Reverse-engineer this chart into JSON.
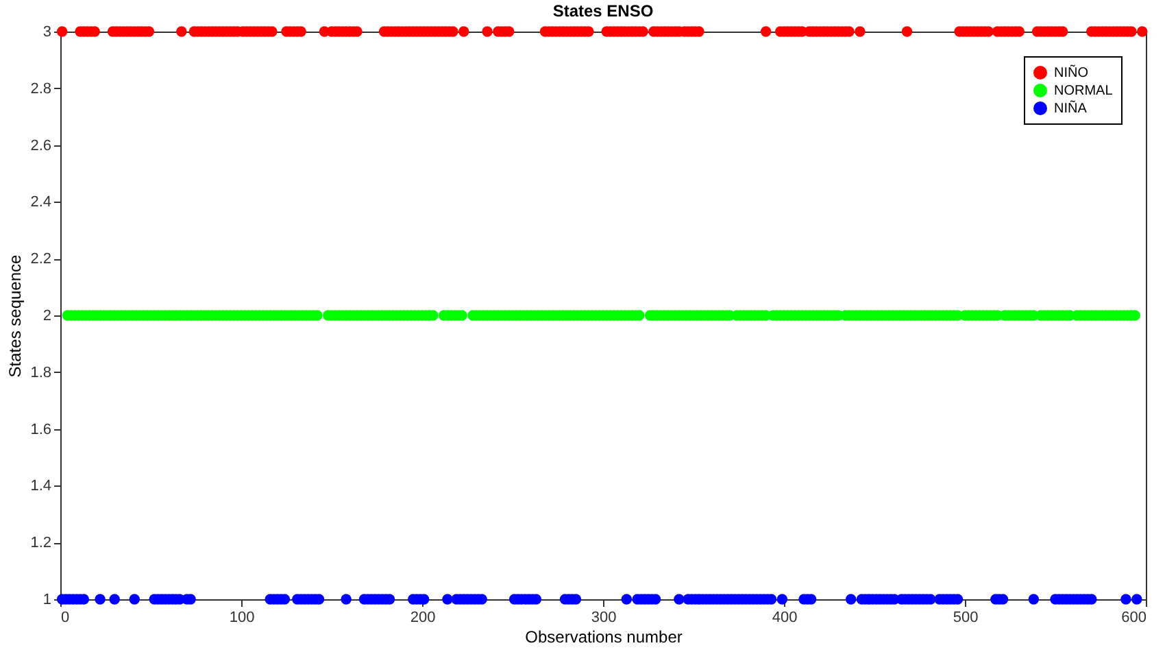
{
  "chart_data": {
    "type": "scatter",
    "title": "States ENSO",
    "xlabel": "Observations number",
    "ylabel": "States sequence",
    "xlim": [
      0,
      600
    ],
    "xticks": [
      0,
      100,
      200,
      300,
      400,
      500,
      600
    ],
    "ylim": [
      1,
      3
    ],
    "yticks": [
      1,
      1.2,
      1.4,
      1.6,
      1.8,
      2,
      2.2,
      2.4,
      2.6,
      2.8,
      3
    ],
    "grid": false,
    "legend": "top right",
    "marker": "circle",
    "series": [
      {
        "name": "NIÑO",
        "color": "#ff0000",
        "x": [
          1,
          11,
          13,
          15,
          17,
          19,
          29,
          31,
          33,
          35,
          37,
          39,
          41,
          43,
          45,
          47,
          49,
          67,
          74,
          76,
          78,
          80,
          82,
          84,
          86,
          88,
          90,
          92,
          94,
          96,
          98,
          101,
          103,
          105,
          107,
          109,
          111,
          113,
          115,
          117,
          125,
          127,
          129,
          131,
          133,
          146,
          150,
          152,
          154,
          156,
          158,
          160,
          162,
          164,
          179,
          181,
          183,
          185,
          187,
          189,
          191,
          193,
          195,
          197,
          199,
          201,
          203,
          205,
          207,
          209,
          211,
          213,
          215,
          217,
          223,
          236,
          242,
          244,
          246,
          248,
          268,
          270,
          272,
          274,
          276,
          278,
          280,
          282,
          284,
          286,
          288,
          290,
          292,
          302,
          304,
          306,
          308,
          310,
          312,
          314,
          316,
          318,
          320,
          322,
          328,
          330,
          332,
          334,
          336,
          338,
          340,
          342,
          345,
          347,
          349,
          351,
          353,
          390,
          398,
          400,
          402,
          404,
          406,
          408,
          410,
          414,
          416,
          418,
          420,
          422,
          424,
          426,
          428,
          430,
          432,
          434,
          436,
          442,
          468,
          497,
          499,
          501,
          503,
          505,
          507,
          509,
          511,
          513,
          518,
          520,
          522,
          524,
          526,
          528,
          530,
          540,
          542,
          544,
          546,
          548,
          550,
          552,
          554,
          570,
          572,
          574,
          576,
          578,
          580,
          582,
          584,
          586,
          588,
          590,
          592,
          598
        ],
        "values": [
          3,
          3,
          3,
          3,
          3,
          3,
          3,
          3,
          3,
          3,
          3,
          3,
          3,
          3,
          3,
          3,
          3,
          3,
          3,
          3,
          3,
          3,
          3,
          3,
          3,
          3,
          3,
          3,
          3,
          3,
          3,
          3,
          3,
          3,
          3,
          3,
          3,
          3,
          3,
          3,
          3,
          3,
          3,
          3,
          3,
          3,
          3,
          3,
          3,
          3,
          3,
          3,
          3,
          3,
          3,
          3,
          3,
          3,
          3,
          3,
          3,
          3,
          3,
          3,
          3,
          3,
          3,
          3,
          3,
          3,
          3,
          3,
          3,
          3,
          3,
          3,
          3,
          3,
          3,
          3,
          3,
          3,
          3,
          3,
          3,
          3,
          3,
          3,
          3,
          3,
          3,
          3,
          3,
          3,
          3,
          3,
          3,
          3,
          3,
          3,
          3,
          3,
          3,
          3,
          3,
          3,
          3,
          3,
          3,
          3,
          3,
          3,
          3,
          3,
          3,
          3,
          3,
          3,
          3,
          3,
          3,
          3,
          3,
          3,
          3,
          3,
          3,
          3,
          3,
          3,
          3,
          3,
          3,
          3,
          3,
          3,
          3,
          3,
          3,
          3,
          3,
          3,
          3,
          3,
          3,
          3,
          3,
          3,
          3,
          3,
          3,
          3,
          3,
          3,
          3,
          3,
          3,
          3,
          3,
          3,
          3,
          3,
          3,
          3,
          3,
          3,
          3,
          3,
          3,
          3,
          3,
          3,
          3,
          3,
          3,
          3
        ]
      },
      {
        "name": "NORMAL",
        "color": "#00ff00",
        "x": [
          4,
          6,
          8,
          10,
          12,
          14,
          16,
          18,
          20,
          22,
          24,
          26,
          28,
          30,
          32,
          34,
          36,
          38,
          40,
          42,
          44,
          46,
          48,
          50,
          52,
          54,
          56,
          58,
          60,
          62,
          64,
          66,
          68,
          70,
          72,
          74,
          76,
          78,
          80,
          82,
          84,
          86,
          88,
          90,
          92,
          94,
          96,
          98,
          100,
          102,
          104,
          106,
          108,
          110,
          112,
          114,
          116,
          118,
          120,
          122,
          124,
          126,
          128,
          130,
          132,
          134,
          136,
          138,
          140,
          142,
          148,
          150,
          152,
          154,
          156,
          158,
          160,
          162,
          164,
          166,
          168,
          170,
          172,
          174,
          176,
          178,
          180,
          182,
          184,
          186,
          188,
          190,
          192,
          194,
          196,
          198,
          200,
          202,
          204,
          206,
          212,
          214,
          216,
          218,
          220,
          222,
          228,
          230,
          232,
          234,
          236,
          238,
          240,
          242,
          244,
          246,
          248,
          250,
          252,
          254,
          256,
          258,
          260,
          262,
          264,
          266,
          268,
          270,
          272,
          274,
          276,
          278,
          280,
          282,
          284,
          286,
          288,
          290,
          292,
          294,
          296,
          298,
          300,
          302,
          304,
          306,
          308,
          310,
          312,
          314,
          316,
          318,
          320,
          326,
          328,
          330,
          332,
          334,
          336,
          338,
          340,
          342,
          344,
          346,
          348,
          350,
          352,
          354,
          356,
          358,
          360,
          362,
          364,
          366,
          368,
          370,
          374,
          376,
          378,
          380,
          382,
          384,
          386,
          388,
          390,
          394,
          396,
          398,
          400,
          402,
          404,
          406,
          408,
          410,
          412,
          414,
          416,
          418,
          420,
          422,
          424,
          426,
          428,
          430,
          434,
          436,
          438,
          440,
          442,
          444,
          446,
          448,
          450,
          452,
          454,
          456,
          458,
          460,
          462,
          464,
          466,
          468,
          470,
          472,
          474,
          476,
          478,
          480,
          482,
          484,
          486,
          488,
          490,
          492,
          494,
          496,
          500,
          502,
          504,
          506,
          508,
          510,
          512,
          514,
          516,
          518,
          522,
          524,
          526,
          528,
          530,
          532,
          534,
          536,
          538,
          542,
          544,
          546,
          548,
          550,
          552,
          554,
          556,
          558,
          562,
          564,
          566,
          568,
          570,
          572,
          574,
          576,
          578,
          580,
          582,
          584,
          586,
          588,
          590,
          592,
          594
        ],
        "values": [
          2,
          2,
          2,
          2,
          2,
          2,
          2,
          2,
          2,
          2,
          2,
          2,
          2,
          2,
          2,
          2,
          2,
          2,
          2,
          2,
          2,
          2,
          2,
          2,
          2,
          2,
          2,
          2,
          2,
          2,
          2,
          2,
          2,
          2,
          2,
          2,
          2,
          2,
          2,
          2,
          2,
          2,
          2,
          2,
          2,
          2,
          2,
          2,
          2,
          2,
          2,
          2,
          2,
          2,
          2,
          2,
          2,
          2,
          2,
          2,
          2,
          2,
          2,
          2,
          2,
          2,
          2,
          2,
          2,
          2,
          2,
          2,
          2,
          2,
          2,
          2,
          2,
          2,
          2,
          2,
          2,
          2,
          2,
          2,
          2,
          2,
          2,
          2,
          2,
          2,
          2,
          2,
          2,
          2,
          2,
          2,
          2,
          2,
          2,
          2,
          2,
          2,
          2,
          2,
          2,
          2,
          2,
          2,
          2,
          2,
          2,
          2,
          2,
          2,
          2,
          2,
          2,
          2,
          2,
          2,
          2,
          2,
          2,
          2,
          2,
          2,
          2,
          2,
          2,
          2,
          2,
          2,
          2,
          2,
          2,
          2,
          2,
          2,
          2,
          2,
          2,
          2,
          2,
          2,
          2,
          2,
          2,
          2,
          2,
          2,
          2,
          2,
          2,
          2,
          2,
          2,
          2,
          2,
          2,
          2,
          2,
          2,
          2,
          2,
          2,
          2,
          2,
          2,
          2,
          2,
          2,
          2,
          2,
          2,
          2,
          2,
          2,
          2,
          2,
          2,
          2,
          2,
          2,
          2,
          2,
          2,
          2,
          2,
          2,
          2,
          2,
          2,
          2,
          2,
          2,
          2,
          2,
          2,
          2,
          2,
          2,
          2,
          2,
          2,
          2,
          2,
          2,
          2,
          2,
          2,
          2,
          2,
          2,
          2,
          2,
          2,
          2,
          2,
          2,
          2,
          2,
          2,
          2,
          2,
          2,
          2,
          2,
          2,
          2,
          2,
          2,
          2,
          2,
          2,
          2,
          2,
          2,
          2,
          2,
          2,
          2,
          2,
          2,
          2,
          2,
          2,
          2,
          2,
          2,
          2,
          2,
          2,
          2,
          2,
          2,
          2,
          2,
          2,
          2,
          2,
          2,
          2,
          2,
          2,
          2,
          2,
          2,
          2,
          2,
          2,
          2,
          2,
          2,
          2,
          2,
          2,
          2,
          2,
          2,
          2,
          2
        ]
      },
      {
        "name": "NIÑA",
        "color": "#0000ff",
        "x": [
          1,
          3,
          5,
          7,
          9,
          11,
          13,
          22,
          30,
          41,
          52,
          54,
          56,
          58,
          60,
          62,
          64,
          66,
          70,
          72,
          116,
          118,
          120,
          122,
          124,
          131,
          133,
          135,
          137,
          139,
          141,
          143,
          158,
          168,
          170,
          172,
          174,
          176,
          178,
          180,
          182,
          195,
          197,
          199,
          201,
          214,
          219,
          221,
          223,
          225,
          227,
          229,
          231,
          233,
          251,
          253,
          255,
          257,
          259,
          261,
          263,
          279,
          281,
          283,
          285,
          313,
          319,
          321,
          323,
          325,
          327,
          329,
          342,
          347,
          349,
          351,
          353,
          355,
          357,
          359,
          361,
          363,
          365,
          367,
          369,
          371,
          373,
          375,
          377,
          379,
          381,
          383,
          385,
          387,
          389,
          391,
          393,
          399,
          411,
          413,
          415,
          437,
          443,
          445,
          447,
          449,
          451,
          453,
          455,
          457,
          459,
          461,
          465,
          467,
          469,
          471,
          473,
          475,
          477,
          479,
          481,
          486,
          488,
          490,
          492,
          494,
          496,
          517,
          519,
          521,
          538,
          550,
          552,
          554,
          556,
          558,
          560,
          562,
          564,
          566,
          568,
          570,
          589,
          595
        ],
        "values": [
          1,
          1,
          1,
          1,
          1,
          1,
          1,
          1,
          1,
          1,
          1,
          1,
          1,
          1,
          1,
          1,
          1,
          1,
          1,
          1,
          1,
          1,
          1,
          1,
          1,
          1,
          1,
          1,
          1,
          1,
          1,
          1,
          1,
          1,
          1,
          1,
          1,
          1,
          1,
          1,
          1,
          1,
          1,
          1,
          1,
          1,
          1,
          1,
          1,
          1,
          1,
          1,
          1,
          1,
          1,
          1,
          1,
          1,
          1,
          1,
          1,
          1,
          1,
          1,
          1,
          1,
          1,
          1,
          1,
          1,
          1,
          1,
          1,
          1,
          1,
          1,
          1,
          1,
          1,
          1,
          1,
          1,
          1,
          1,
          1,
          1,
          1,
          1,
          1,
          1,
          1,
          1,
          1,
          1,
          1,
          1,
          1,
          1,
          1,
          1,
          1,
          1,
          1,
          1,
          1,
          1,
          1,
          1,
          1,
          1,
          1,
          1,
          1,
          1,
          1,
          1,
          1,
          1,
          1,
          1,
          1,
          1,
          1,
          1,
          1,
          1,
          1,
          1,
          1,
          1,
          1,
          1,
          1,
          1,
          1,
          1,
          1,
          1,
          1,
          1,
          1,
          1,
          1,
          1
        ]
      }
    ]
  }
}
